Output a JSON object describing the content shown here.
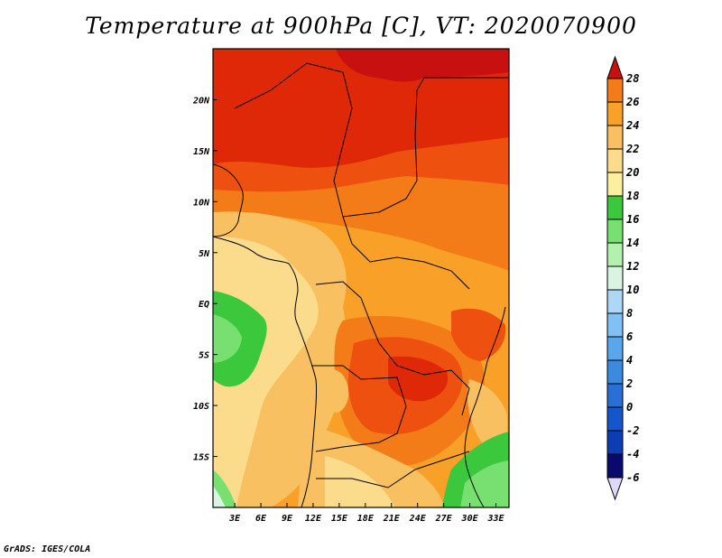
{
  "title": "Temperature at 900hPa [C], VT: 2020070900",
  "credit": "GrADS: IGES/COLA",
  "chart_data": {
    "type": "heatmap",
    "title": "Temperature at 900hPa [C], VT: 2020070900",
    "variable": "Temperature at 900hPa",
    "units": "C",
    "valid_time": "2020070900",
    "x_ticks": [
      "3E",
      "6E",
      "9E",
      "12E",
      "15E",
      "18E",
      "21E",
      "24E",
      "27E",
      "30E",
      "33E"
    ],
    "x_tick_values": [
      3,
      6,
      9,
      12,
      15,
      18,
      21,
      24,
      27,
      30,
      33
    ],
    "y_ticks": [
      "20N",
      "15N",
      "10N",
      "5N",
      "EQ",
      "5S",
      "10S",
      "15S"
    ],
    "y_tick_values": [
      20,
      15,
      10,
      5,
      0,
      -5,
      -10,
      -15
    ],
    "xlim": [
      0.5,
      34.5
    ],
    "ylim": [
      -20,
      25
    ],
    "colorbar": {
      "levels": [
        -6,
        -4,
        -2,
        0,
        2,
        4,
        6,
        8,
        10,
        12,
        14,
        16,
        18,
        20,
        22,
        24,
        26,
        28
      ],
      "labels": [
        "-6",
        "-4",
        "-2",
        "0",
        "2",
        "4",
        "6",
        "8",
        "10",
        "12",
        "14",
        "16",
        "18",
        "20",
        "22",
        "24",
        "26",
        "28"
      ],
      "colors": [
        "#e0d8f8",
        "#0a0a6e",
        "#0e3cb4",
        "#1656cc",
        "#2a6ed8",
        "#3a8ae0",
        "#5aa6ec",
        "#80c0f2",
        "#acd8f6",
        "#d8f4e2",
        "#b4f0b0",
        "#78e070",
        "#3cc83c",
        "#fcf0a0",
        "#fbdc8c",
        "#f8c060",
        "#f8a028",
        "#f47c18",
        "#ee5010",
        "#de2808",
        "#c81010"
      ]
    },
    "map_colors": {
      "t29": "#c81010",
      "t27": "#de2808",
      "t25": "#ee5010",
      "t23": "#f47c18",
      "t21": "#f8a028",
      "t19": "#f8c060",
      "t17": "#fbdc8c",
      "t13": "#3cc83c",
      "t12": "#78e070",
      "t11": "#b4f0b0",
      "t9": "#d8f4e2"
    }
  }
}
